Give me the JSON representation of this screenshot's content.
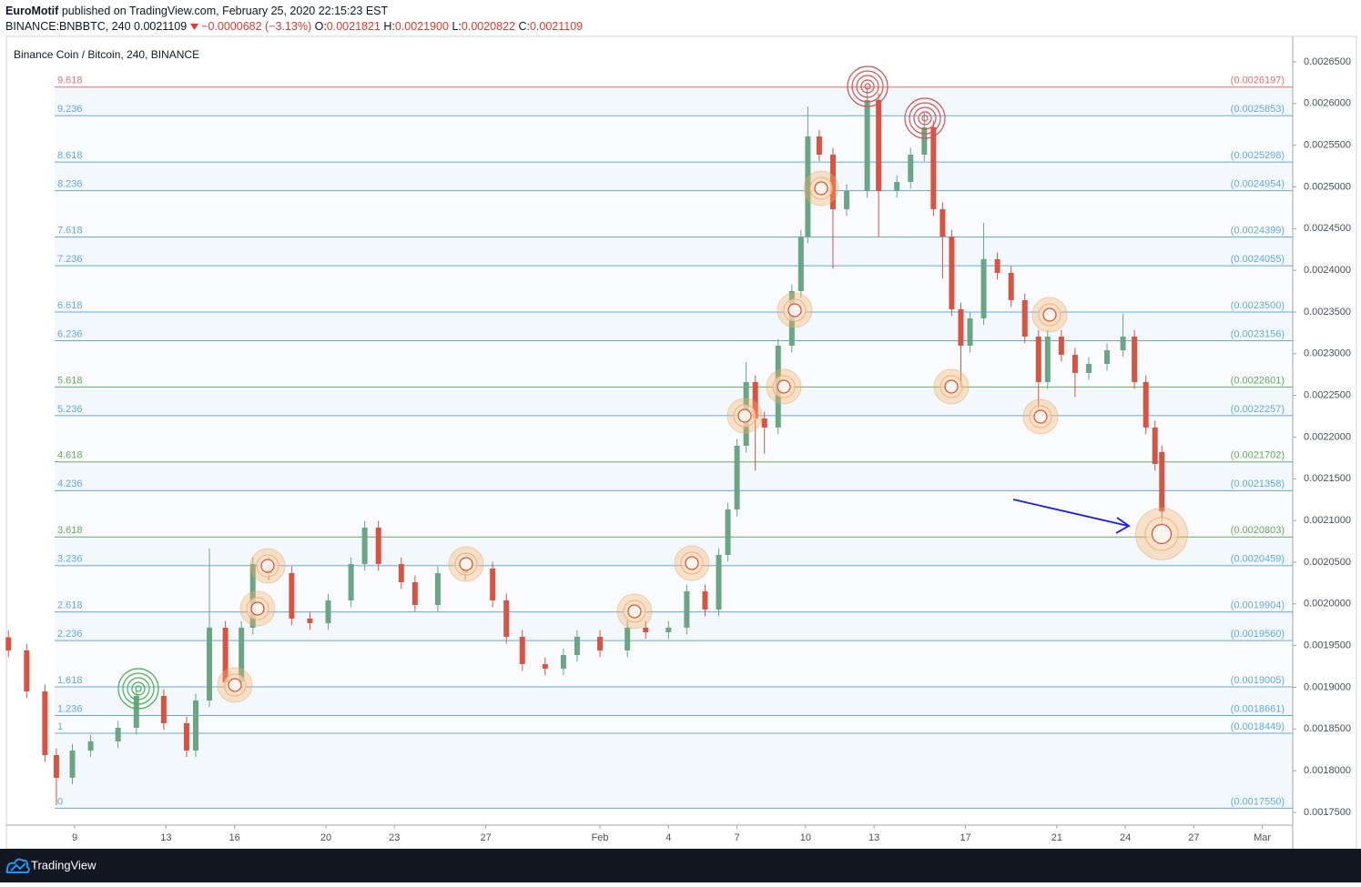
{
  "header": {
    "author": "EuroMotif",
    "published": "published on TradingView.com, February 25, 2020 22:15:23 EST",
    "symbol": "BINANCE:BNBBTC, 240",
    "last": "0.0021109",
    "change": "−0.0000682 (−3.13%)",
    "open_label": "O:",
    "open": "0.0021821",
    "high_label": "H:",
    "high": "0.0021900",
    "low_label": "L:",
    "low": "0.0020822",
    "close_label": "C:",
    "close": "0.0021109"
  },
  "chart_data": {
    "type": "candlestick",
    "title": "Binance Coin / Bitcoin, 240, BINANCE",
    "up_color": "#6ba583",
    "down_color": "#d75442",
    "x": [
      6.1,
      6.9,
      7.7,
      8.2,
      8.9,
      9.7,
      10.9,
      11.7,
      12.9,
      13.9,
      14.3,
      14.9,
      15.6,
      16.3,
      16.8,
      17.5,
      18.5,
      19.3,
      20.1,
      21.1,
      21.7,
      22.3,
      23.3,
      23.9,
      24.9,
      26.1,
      27.3,
      27.9,
      28.6,
      29.6,
      30.4,
      31.0,
      32.0,
      33.2,
      34.0,
      35.0,
      35.8,
      36.6,
      37.2,
      37.6,
      38.0,
      38.4,
      38.8,
      39.2,
      39.8,
      40.4,
      40.8,
      41.1,
      41.6,
      42.2,
      42.8,
      43.7,
      44.2,
      45.0,
      45.6,
      46.2,
      46.6,
      47.0,
      47.4,
      47.8,
      48.2,
      48.8,
      49.4,
      50.0,
      50.6,
      51.2,
      51.6,
      52.2,
      52.8,
      53.4,
      54.2,
      54.9,
      55.4,
      55.9,
      56.3,
      56.6
    ],
    "open": [
      0.00196,
      0.0019442,
      0.0018951,
      0.0018187,
      0.0017915,
      0.0018242,
      0.0018351,
      0.0018515,
      0.0018896,
      0.0018569,
      0.0018242,
      0.0018842,
      0.0019715,
      0.001906,
      0.0019715,
      0.0020478,
      0.0020369,
      0.0019824,
      0.0019769,
      0.0020042,
      0.0020478,
      0.0020915,
      0.0020478,
      0.002026,
      0.0019987,
      0.0020369,
      0.0020424,
      0.0020042,
      0.0019605,
      0.0019278,
      0.0019224,
      0.0019387,
      0.0019605,
      0.0019442,
      0.0019715,
      0.001966,
      0.0019715,
      0.0020151,
      0.0019933,
      0.0020587,
      0.0021133,
      0.0021896,
      0.002266,
      0.0022224,
      0.0022115,
      0.0023096,
      0.0023751,
      0.0024405,
      0.0025605,
      0.0025387,
      0.0024733,
      0.0024951,
      0.0026042,
      0.0024951,
      0.002506,
      0.0025387,
      0.0025715,
      0.0024733,
      0.0024405,
      0.0023533,
      0.0023096,
      0.0023424,
      0.0024133,
      0.0023969,
      0.0023642,
      0.0023205,
      0.002266,
      0.0023205,
      0.0022987,
      0.0022769,
      0.0022878,
      0.0023042,
      0.0023205,
      0.002266,
      0.0022115,
      0.0021821
    ],
    "high": [
      0.001968,
      0.0019522,
      0.0019031,
      0.0018267,
      0.0018322,
      0.0018431,
      0.0018595,
      0.0018976,
      0.0018976,
      0.0018649,
      0.0018922,
      0.0020664,
      0.0019795,
      0.0019795,
      0.0020558,
      0.0020558,
      0.0020449,
      0.0019904,
      0.0020122,
      0.0020558,
      0.0020995,
      0.0020995,
      0.0020558,
      0.002034,
      0.0020449,
      0.0020504,
      0.0020504,
      0.0020122,
      0.0019685,
      0.0019358,
      0.0019467,
      0.0019685,
      0.0019685,
      0.0019795,
      0.0019795,
      0.0019795,
      0.0020231,
      0.0020231,
      0.0020667,
      0.0021213,
      0.0021976,
      0.00229,
      0.002274,
      0.0022304,
      0.0023176,
      0.0023831,
      0.0024485,
      0.0025965,
      0.0025685,
      0.0025467,
      0.0025031,
      0.0026195,
      0.0026122,
      0.002514,
      0.0025467,
      0.0025889,
      0.0025795,
      0.0024813,
      0.0024485,
      0.0023613,
      0.0023504,
      0.0024569,
      0.0024213,
      0.0024049,
      0.0023722,
      0.0023285,
      0.0023285,
      0.0023285,
      0.0023067,
      0.0022958,
      0.0023122,
      0.0023478,
      0.0023285,
      0.002274,
      0.0022195,
      0.00219
    ],
    "low": [
      0.0019362,
      0.0018871,
      0.0018107,
      0.0017587,
      0.0017835,
      0.0018162,
      0.0018271,
      0.0018435,
      0.0018489,
      0.0018162,
      0.0018162,
      0.0018762,
      0.001898,
      0.001898,
      0.0019635,
      0.0020289,
      0.0019744,
      0.0019689,
      0.0019689,
      0.0019962,
      0.0020398,
      0.0020398,
      0.002018,
      0.0019907,
      0.0019907,
      0.0020289,
      0.0019962,
      0.0019525,
      0.0019198,
      0.0019144,
      0.0019144,
      0.0019307,
      0.0019362,
      0.0019362,
      0.001958,
      0.001958,
      0.0019635,
      0.0019853,
      0.0019853,
      0.0020507,
      0.0021053,
      0.0021816,
      0.00216,
      0.00218,
      0.0022035,
      0.0023016,
      0.0023671,
      0.0024325,
      0.0025307,
      0.002402,
      0.0024653,
      0.0024871,
      0.00244,
      0.0024871,
      0.002498,
      0.0025307,
      0.0024653,
      0.00239,
      0.0023453,
      0.00226,
      0.0023016,
      0.0023344,
      0.0023889,
      0.0023562,
      0.0023125,
      0.0022333,
      0.002258,
      0.0022907,
      0.002248,
      0.0022689,
      0.0022798,
      0.0022962,
      0.002258,
      0.0022035,
      0.0021598,
      0.0020822
    ],
    "close": [
      0.0019442,
      0.0018951,
      0.0018187,
      0.0017915,
      0.0018242,
      0.0018351,
      0.0018515,
      0.0018896,
      0.0018569,
      0.0018242,
      0.0018842,
      0.0019715,
      0.001906,
      0.0019715,
      0.0020478,
      0.0020369,
      0.0019824,
      0.0019769,
      0.0020042,
      0.0020478,
      0.0020915,
      0.0020478,
      0.002026,
      0.0019987,
      0.0020369,
      0.0020424,
      0.0020042,
      0.0019605,
      0.0019278,
      0.0019224,
      0.0019387,
      0.0019605,
      0.0019442,
      0.0019715,
      0.001966,
      0.0019715,
      0.0020151,
      0.0019933,
      0.0020587,
      0.0021133,
      0.0021896,
      0.002266,
      0.0022224,
      0.0022115,
      0.0023096,
      0.0023751,
      0.0024405,
      0.0025605,
      0.0025387,
      0.0024733,
      0.0024951,
      0.0026042,
      0.0024951,
      0.002506,
      0.0025387,
      0.0025715,
      0.0024733,
      0.0024405,
      0.0023533,
      0.0023096,
      0.0023424,
      0.0024133,
      0.0023969,
      0.0023642,
      0.0023205,
      0.002266,
      0.0023205,
      0.0022987,
      0.0022769,
      0.0022878,
      0.0023042,
      0.0023205,
      0.002266,
      0.0022115,
      0.0021678,
      0.0021109
    ],
    "xlim": [
      6.01,
      62.33
    ],
    "ylim": [
      0.0017347,
      0.0026805
    ],
    "xticks": [
      9,
      13,
      16,
      20,
      23,
      27,
      {
        "value": 32,
        "label": "Feb"
      },
      {
        "value": 35,
        "label": "4"
      },
      {
        "value": 38,
        "label": "7"
      },
      {
        "value": 41,
        "label": "10"
      },
      {
        "value": 44,
        "label": "13"
      },
      {
        "value": 48,
        "label": "17"
      },
      {
        "value": 52,
        "label": "21"
      },
      {
        "value": 55,
        "label": "24"
      },
      {
        "value": 58,
        "label": "27"
      },
      {
        "value": 61,
        "label": "Mar"
      }
    ],
    "yticks": [
      {
        "value": 0.00175,
        "label": "0.0017500"
      },
      {
        "value": 0.0018,
        "label": "0.0018000"
      },
      {
        "value": 0.00185,
        "label": "0.0018500"
      },
      {
        "value": 0.0019,
        "label": "0.0019000"
      },
      {
        "value": 0.00195,
        "label": "0.0019500"
      },
      {
        "value": 0.002,
        "label": "0.0020000"
      },
      {
        "value": 0.00205,
        "label": "0.0020500"
      },
      {
        "value": 0.0021,
        "label": "0.0021000"
      },
      {
        "value": 0.00215,
        "label": "0.0021500"
      },
      {
        "value": 0.0022,
        "label": "0.0022000"
      },
      {
        "value": 0.00225,
        "label": "0.0022500"
      },
      {
        "value": 0.0023,
        "label": "0.0023000"
      },
      {
        "value": 0.00235,
        "label": "0.0023500"
      },
      {
        "value": 0.0024,
        "label": "0.0024000"
      },
      {
        "value": 0.00245,
        "label": "0.0024500"
      },
      {
        "value": 0.0025,
        "label": "0.0025000"
      },
      {
        "value": 0.00255,
        "label": "0.0025500"
      },
      {
        "value": 0.0026,
        "label": "0.0026000"
      },
      {
        "value": 0.00265,
        "label": "0.0026500"
      }
    ],
    "fib_levels": [
      {
        "ratio": 9.618,
        "price": {
          "value": 0.0026197,
          "label": "(0.0026197)"
        },
        "color": "#ef6b6b"
      },
      {
        "ratio": 9.236,
        "price": {
          "value": 0.0025853,
          "label": "(0.0025853)"
        },
        "color": "#64a9e6"
      },
      {
        "ratio": 8.618,
        "price": {
          "value": 0.0025298,
          "label": "(0.0025298)"
        },
        "color": "#64a9e6"
      },
      {
        "ratio": 8.236,
        "price": {
          "value": 0.0024954,
          "label": "(0.0024954)"
        },
        "color": "#64a9e6"
      },
      {
        "ratio": 7.618,
        "price": {
          "value": 0.0024399,
          "label": "(0.0024399)"
        },
        "color": "#64a9e6"
      },
      {
        "ratio": 7.236,
        "price": {
          "value": 0.0024055,
          "label": "(0.0024055)"
        },
        "color": "#64a9e6"
      },
      {
        "ratio": 6.618,
        "price": {
          "value": 0.00235,
          "label": "(0.0023500)"
        },
        "color": "#64a9e6"
      },
      {
        "ratio": 6.236,
        "price": {
          "value": 0.0023156,
          "label": "(0.0023156)"
        },
        "color": "#64a9e6"
      },
      {
        "ratio": 5.618,
        "price": {
          "value": 0.0022601,
          "label": "(0.0022601)"
        },
        "color": "#6aaa5e"
      },
      {
        "ratio": 5.236,
        "price": {
          "value": 0.0022257,
          "label": "(0.0022257)"
        },
        "color": "#64a9e6"
      },
      {
        "ratio": 4.618,
        "price": {
          "value": 0.0021702,
          "label": "(0.0021702)"
        },
        "color": "#6aaa5e"
      },
      {
        "ratio": 4.236,
        "price": {
          "value": 0.0021358,
          "label": "(0.0021358)"
        },
        "color": "#64a9e6"
      },
      {
        "ratio": 3.618,
        "price": {
          "value": 0.0020803,
          "label": "(0.0020803)"
        },
        "color": "#6aaa5e"
      },
      {
        "ratio": 3.236,
        "price": {
          "value": 0.0020459,
          "label": "(0.0020459)"
        },
        "color": "#64a9e6"
      },
      {
        "ratio": 2.618,
        "price": {
          "value": 0.0019904,
          "label": "(0.0019904)"
        },
        "color": "#64a9e6"
      },
      {
        "ratio": 2.236,
        "price": {
          "value": 0.001956,
          "label": "(0.0019560)"
        },
        "color": "#64a9e6"
      },
      {
        "ratio": 1.618,
        "price": {
          "value": 0.0019005,
          "label": "(0.0019005)"
        },
        "color": "#64a9e6"
      },
      {
        "ratio": 1.236,
        "price": {
          "value": 0.0018661,
          "label": "(0.0018661)"
        },
        "color": "#64a9e6"
      },
      {
        "ratio": 1,
        "price": {
          "value": 0.0018449,
          "label": "(0.0018449)"
        },
        "color": "#64a9e6"
      },
      {
        "ratio": 0,
        "price": {
          "value": 0.001755,
          "label": "(0.0017550)"
        },
        "color": "#64a9e6"
      }
    ]
  },
  "footer": {
    "brand": "TradingView"
  }
}
